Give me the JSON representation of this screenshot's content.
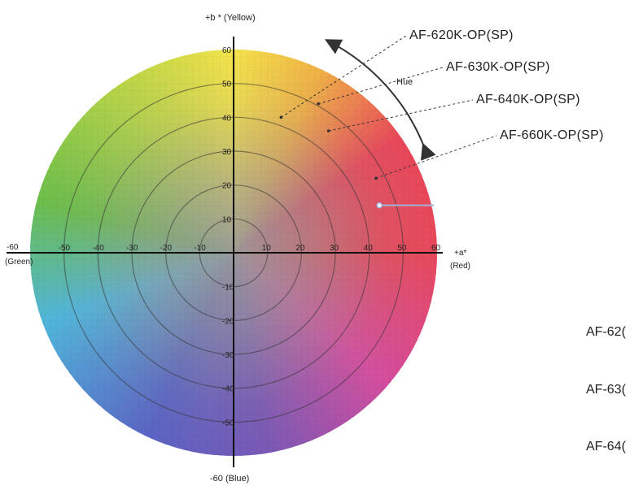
{
  "axes": {
    "b_plus_label": "+b * (Yellow)",
    "b_minus_label": "-60 (Blue)",
    "a_plus_label": "+a*",
    "a_plus_sub": "(Red)",
    "a_minus_label": "-60",
    "a_minus_sub": "(Green)",
    "b_ticks": [
      "60",
      "50",
      "40",
      "30",
      "20",
      "10",
      "-10",
      "-20",
      "-30",
      "-40",
      "-50"
    ],
    "a_ticks": [
      "-50",
      "-40",
      "-30",
      "-20",
      "-10",
      "10",
      "20",
      "30",
      "40",
      "50",
      "60"
    ]
  },
  "hue_label": "Hue",
  "products": [
    {
      "name": "AF-620K-OP(SP)",
      "a": 14,
      "b": 40
    },
    {
      "name": "AF-630K-OP(SP)",
      "a": 25,
      "b": 44
    },
    {
      "name": "AF-640K-OP(SP)",
      "a": 28,
      "b": 36
    },
    {
      "name": "AF-660K-OP(SP)",
      "a": 42,
      "b": 22
    }
  ],
  "marker": {
    "a": 43,
    "b": 14
  },
  "cutoff_labels": [
    "AF-62(",
    "AF-63(",
    "AF-64("
  ],
  "colors": {
    "center": "#9b9b9b",
    "yellow": "#f4e34a",
    "orange": "#f1b246",
    "red": "#e8485a",
    "magenta": "#d64c9e",
    "purple": "#7a58b6",
    "blue": "#5a64c4",
    "cyan": "#4fb6dc",
    "green": "#6cbf4a",
    "lime": "#b6d448",
    "marker": "#9fb3d8"
  }
}
